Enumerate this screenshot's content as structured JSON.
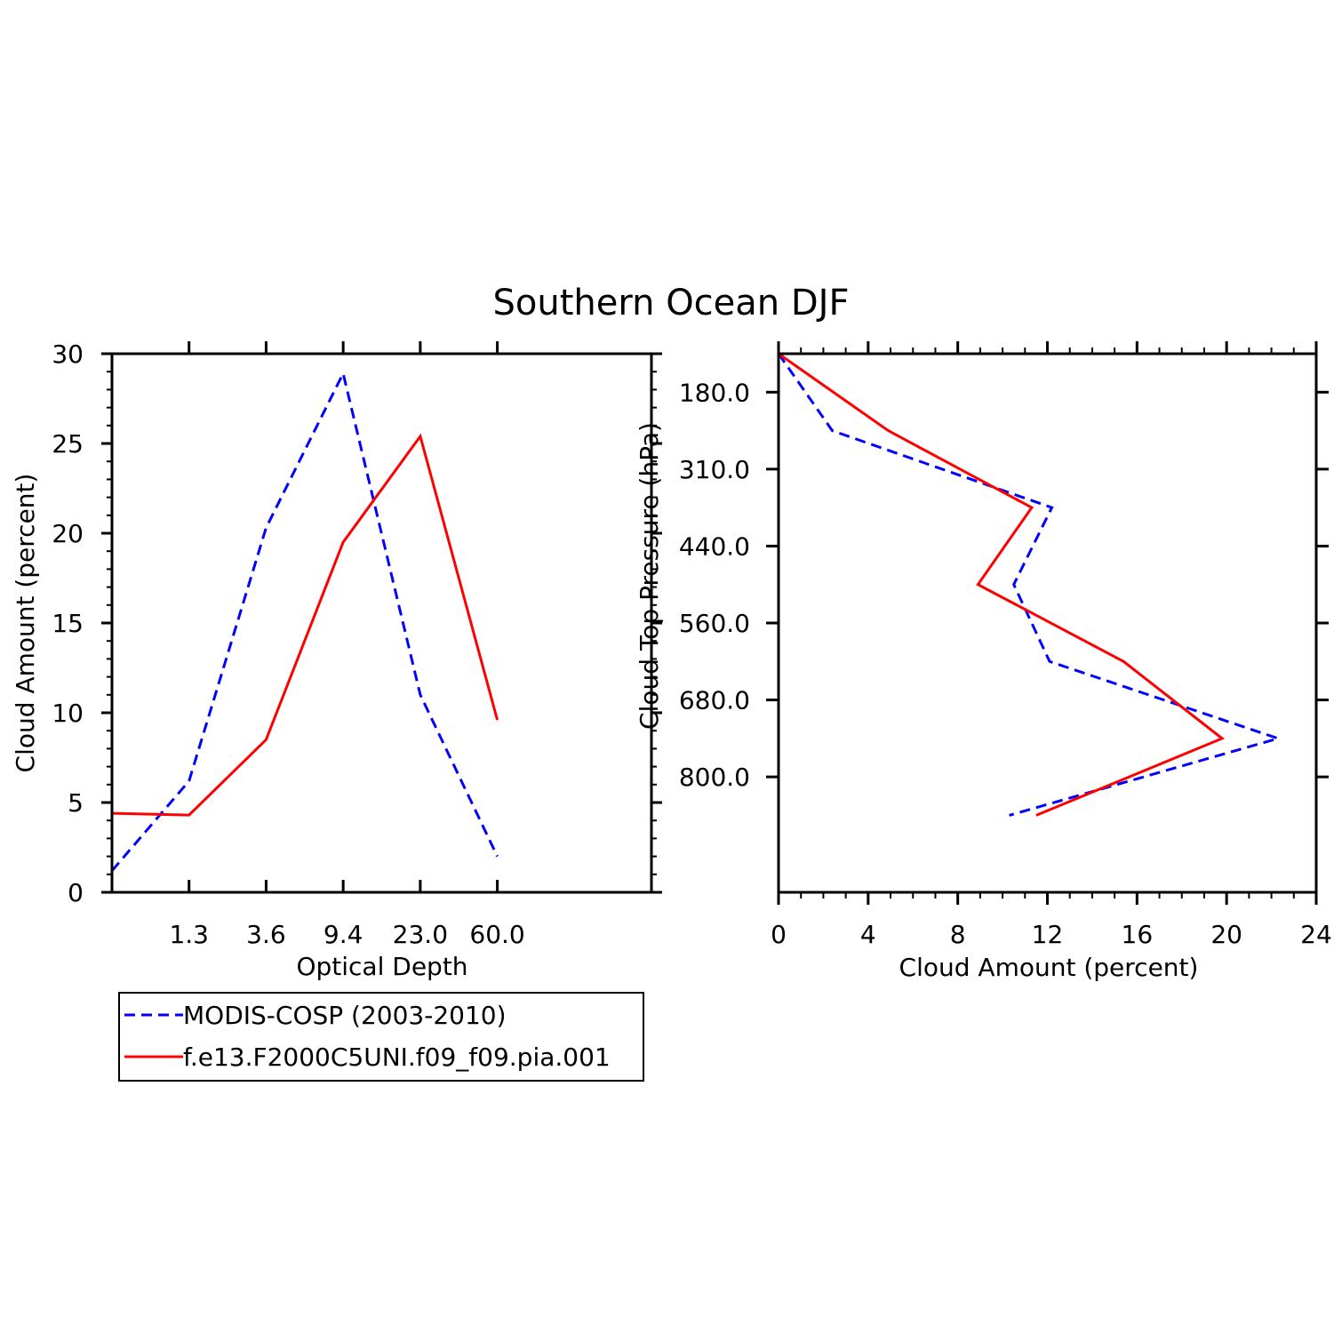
{
  "figure_title": "Southern Ocean DJF",
  "colors": {
    "obs": "#0000ff",
    "model": "#ff0000",
    "axes": "#000000"
  },
  "legend": {
    "entries": [
      {
        "label": "MODIS-COSP (2003-2010)",
        "style": "dashed",
        "color": "#0000ff"
      },
      {
        "label": "f.e13.F2000C5UNI.f09_f09.pia.001",
        "style": "solid",
        "color": "#ff0000"
      }
    ]
  },
  "chart_data": [
    {
      "type": "line",
      "xlabel": "Optical Depth",
      "ylabel": "Cloud Amount (percent)",
      "x_tick_labels": [
        "1.3",
        "3.6",
        "9.4",
        "23.0",
        "60.0"
      ],
      "x_bins": 7,
      "ylim": [
        0,
        30
      ],
      "y_ticks": [
        0,
        5,
        10,
        15,
        20,
        25,
        30
      ],
      "series": [
        {
          "name": "MODIS-COSP (2003-2010)",
          "values": [
            1.2,
            6.2,
            20.3,
            28.9,
            11.0,
            2.0
          ]
        },
        {
          "name": "f.e13.F2000C5UNI.f09_f09.pia.001",
          "values": [
            4.4,
            4.3,
            8.5,
            19.5,
            25.4,
            9.6
          ]
        }
      ]
    },
    {
      "type": "line",
      "xlabel": "Cloud Amount (percent)",
      "ylabel": "Cloud Top Pressure (hPa)",
      "xlim": [
        0,
        24
      ],
      "x_ticks": [
        0,
        4,
        8,
        12,
        16,
        20,
        24
      ],
      "y_tick_labels": [
        "180.0",
        "310.0",
        "440.0",
        "560.0",
        "680.0",
        "800.0"
      ],
      "y_bins": 7,
      "series": [
        {
          "name": "MODIS-COSP (2003-2010)",
          "values": [
            0.0,
            2.4,
            12.2,
            10.5,
            12.1,
            22.3,
            10.3
          ]
        },
        {
          "name": "f.e13.F2000C5UNI.f09_f09.pia.001",
          "values": [
            0.0,
            4.9,
            11.3,
            8.9,
            15.4,
            19.8,
            11.5
          ]
        }
      ]
    }
  ]
}
